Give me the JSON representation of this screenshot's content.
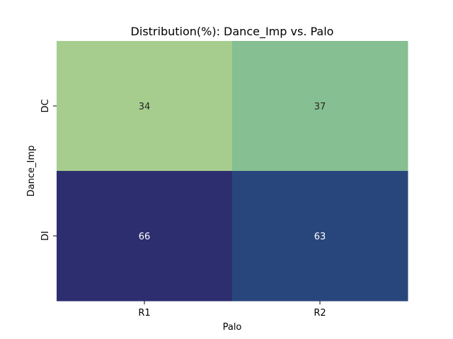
{
  "chart_data": {
    "type": "heatmap",
    "title": "Distribution(%): Dance_Imp vs. Palo",
    "xlabel": "Palo",
    "ylabel": "Dance_Imp",
    "x_categories": [
      "R1",
      "R2"
    ],
    "y_categories": [
      "DC",
      "DI"
    ],
    "values": [
      [
        34,
        37
      ],
      [
        66,
        63
      ]
    ],
    "colormap": "crest",
    "cell_colors": [
      [
        "#a6cd8e",
        "#86bf91"
      ],
      [
        "#2d2e6f",
        "#29467c"
      ]
    ],
    "annotation_colors": [
      [
        "#262626",
        "#262626"
      ],
      [
        "#ffffff",
        "#ffffff"
      ]
    ],
    "colorbar": false,
    "grid": false
  }
}
